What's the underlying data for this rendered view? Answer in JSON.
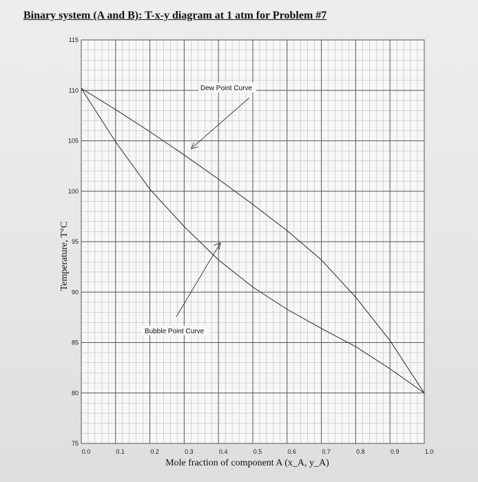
{
  "page_title": "Binary system (A and B): T-x-y diagram at 1 atm for Problem #7",
  "chart_data": {
    "type": "line",
    "xlabel": "Mole fraction of component A (x_A, y_A)",
    "ylabel": "Temperature, T°C",
    "xlim": [
      0.0,
      1.0
    ],
    "ylim": [
      75,
      115
    ],
    "grid": true,
    "x_ticks": [
      "0.0",
      "0.1",
      "0.2",
      "0.3",
      "0.4",
      "0.5",
      "0.6",
      "0.7",
      "0.8",
      "0.9",
      "1.0"
    ],
    "y_ticks": [
      "75",
      "80",
      "85",
      "90",
      "95",
      "100",
      "105",
      "110",
      "115"
    ],
    "series": [
      {
        "name": "Dew Point Curve",
        "x": [
          0.0,
          0.1,
          0.2,
          0.3,
          0.4,
          0.5,
          0.6,
          0.7,
          0.8,
          0.9,
          1.0
        ],
        "y": [
          110.2,
          108.1,
          105.9,
          103.6,
          101.2,
          98.7,
          96.1,
          93.2,
          89.5,
          85.2,
          80.0
        ]
      },
      {
        "name": "Bubble Point Curve",
        "x": [
          0.0,
          0.1,
          0.2,
          0.3,
          0.4,
          0.5,
          0.6,
          0.7,
          0.8,
          0.9,
          1.0
        ],
        "y": [
          110.2,
          104.9,
          100.2,
          96.5,
          93.2,
          90.5,
          88.3,
          86.4,
          84.6,
          82.4,
          80.0
        ]
      }
    ],
    "annotations": [
      {
        "text": "Dew Point Curve",
        "points_to": [
          0.32,
          104.2
        ]
      },
      {
        "text": "Bubble Point Curve",
        "points_to": [
          0.4,
          95.1
        ]
      }
    ],
    "colors": {
      "curve": "#3a3a3a",
      "grid": "#8a8a8a",
      "background": "#f7f7f7"
    }
  }
}
